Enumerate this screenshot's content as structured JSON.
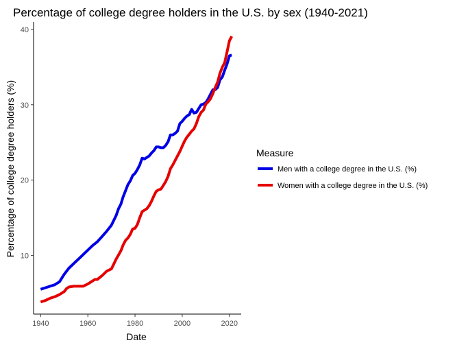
{
  "chart_data": {
    "type": "line",
    "title": "Percentage of college degree holders in the U.S. by sex (1940-2021)",
    "xlabel": "Date",
    "ylabel": "Percentage of college degree holders (%)",
    "xlim": [
      1937,
      2025
    ],
    "ylim": [
      2.2,
      41
    ],
    "x_ticks": [
      1940,
      1960,
      1980,
      2000,
      2020
    ],
    "y_ticks": [
      10,
      20,
      30,
      40
    ],
    "grid": false,
    "legend": {
      "title": "Measure",
      "position": "right"
    },
    "series": [
      {
        "name": "Men with a college degree in the U.S. (%)",
        "color": "#0000e6",
        "x": [
          1940,
          1942,
          1944,
          1946,
          1947,
          1948,
          1950,
          1952,
          1954,
          1956,
          1958,
          1960,
          1962,
          1964,
          1966,
          1968,
          1970,
          1972,
          1973,
          1974,
          1975,
          1976,
          1977,
          1978,
          1979,
          1980,
          1981,
          1982,
          1983,
          1984,
          1985,
          1986,
          1987,
          1988,
          1989,
          1990,
          1991,
          1992,
          1993,
          1994,
          1995,
          1996,
          1997,
          1998,
          1999,
          2000,
          2001,
          2002,
          2003,
          2004,
          2005,
          2006,
          2007,
          2008,
          2009,
          2010,
          2011,
          2012,
          2013,
          2014,
          2015,
          2016,
          2017,
          2018,
          2019,
          2020,
          2021
        ],
        "values": [
          5.5,
          5.7,
          5.9,
          6.1,
          6.3,
          6.5,
          7.5,
          8.3,
          8.9,
          9.5,
          10.1,
          10.7,
          11.3,
          11.8,
          12.5,
          13.2,
          14.0,
          15.3,
          16.2,
          16.8,
          17.8,
          18.6,
          19.4,
          19.9,
          20.6,
          20.9,
          21.4,
          22.0,
          22.9,
          22.8,
          23.0,
          23.2,
          23.6,
          23.9,
          24.4,
          24.4,
          24.3,
          24.3,
          24.6,
          25.1,
          26.0,
          26.0,
          26.2,
          26.5,
          27.5,
          27.8,
          28.2,
          28.5,
          28.7,
          29.4,
          28.9,
          29.0,
          29.5,
          30.0,
          30.1,
          30.3,
          30.8,
          31.4,
          32.0,
          32.0,
          32.3,
          33.3,
          33.7,
          34.6,
          35.4,
          36.5,
          36.6
        ]
      },
      {
        "name": "Women with a college degree in the U.S. (%)",
        "color": "#e60000",
        "x": [
          1940,
          1942,
          1944,
          1946,
          1948,
          1950,
          1951,
          1952,
          1954,
          1956,
          1957,
          1958,
          1960,
          1962,
          1963,
          1964,
          1966,
          1968,
          1970,
          1972,
          1974,
          1975,
          1976,
          1977,
          1978,
          1979,
          1980,
          1981,
          1982,
          1983,
          1984,
          1985,
          1986,
          1987,
          1988,
          1989,
          1990,
          1991,
          1992,
          1993,
          1994,
          1995,
          1996,
          1997,
          1998,
          1999,
          2000,
          2001,
          2002,
          2003,
          2004,
          2005,
          2006,
          2007,
          2008,
          2009,
          2010,
          2011,
          2012,
          2013,
          2014,
          2015,
          2016,
          2017,
          2018,
          2019,
          2020,
          2021
        ],
        "values": [
          3.8,
          4.0,
          4.3,
          4.5,
          4.8,
          5.2,
          5.6,
          5.8,
          5.9,
          5.9,
          5.9,
          5.9,
          6.2,
          6.6,
          6.8,
          6.8,
          7.3,
          7.9,
          8.2,
          9.5,
          10.6,
          11.4,
          12.0,
          12.3,
          12.8,
          13.5,
          13.6,
          14.1,
          15.0,
          15.8,
          16.0,
          16.2,
          16.6,
          17.2,
          17.9,
          18.5,
          18.7,
          18.8,
          19.3,
          19.8,
          20.5,
          21.5,
          22.0,
          22.6,
          23.2,
          23.8,
          24.5,
          25.2,
          25.7,
          26.1,
          26.5,
          26.8,
          27.5,
          28.4,
          29.0,
          29.3,
          30.1,
          30.4,
          30.8,
          31.5,
          32.3,
          33.0,
          34.2,
          35.0,
          35.6,
          37.0,
          38.5,
          39.1
        ]
      }
    ]
  }
}
